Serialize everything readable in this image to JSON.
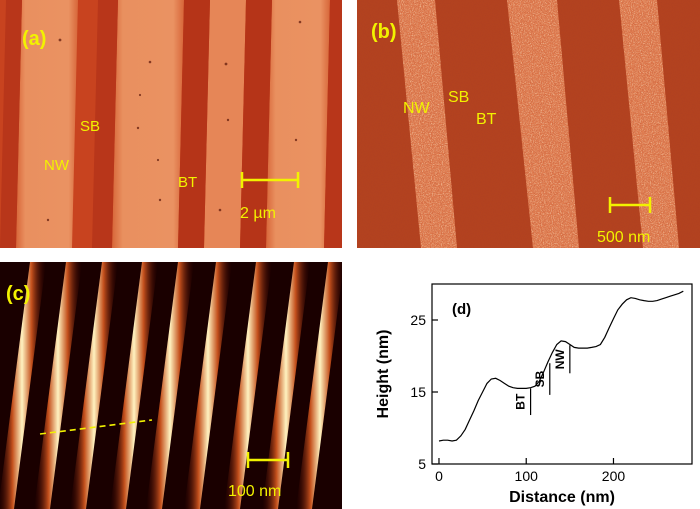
{
  "panels": {
    "a": {
      "tag": "(a)",
      "labels": {
        "sb": "SB",
        "nw": "NW",
        "bt": "BT"
      },
      "scale_bar": "2 µm"
    },
    "b": {
      "tag": "(b)",
      "labels": {
        "nw": "NW",
        "sb": "SB",
        "bt": "BT"
      },
      "scale_bar": "500 nm"
    },
    "c": {
      "tag": "(c)",
      "scale_bar": "100 nm"
    },
    "d": {
      "tag": "(d)",
      "annotations": [
        "BT",
        "SB",
        "NW"
      ]
    }
  },
  "colors": {
    "afm_dark": "#c23a1c",
    "afm_light": "#e8875a",
    "annotation_yellow": "#f2f200",
    "height_profile_dark": "#1a0000",
    "height_profile_bright": "#fff2c0"
  },
  "chart_data": {
    "type": "line",
    "title": "",
    "xlabel": "Distance (nm)",
    "ylabel": "Height (nm)",
    "xlim": [
      -8,
      290
    ],
    "ylim": [
      5,
      30
    ],
    "xticks": [
      0,
      100,
      200
    ],
    "yticks": [
      5,
      15,
      25
    ],
    "grid": false,
    "series": [
      {
        "x": [
          0,
          5,
          10,
          15,
          20,
          25,
          30,
          35,
          40,
          45,
          50,
          55,
          60,
          65,
          70,
          75,
          80,
          85,
          90,
          95,
          100,
          105,
          110,
          115,
          120,
          125,
          130,
          135,
          140,
          145,
          150,
          155,
          160,
          165,
          170,
          175,
          180,
          185,
          190,
          195,
          200,
          205,
          210,
          215,
          220,
          225,
          230,
          235,
          240,
          245,
          250,
          255,
          260,
          265,
          270,
          275,
          280
        ],
        "y": [
          8.2,
          8.3,
          8.3,
          8.2,
          8.3,
          8.9,
          9.8,
          11.1,
          12.4,
          13.8,
          15.0,
          16.2,
          16.8,
          16.9,
          16.6,
          16.2,
          15.8,
          15.6,
          15.5,
          15.5,
          15.5,
          15.6,
          15.8,
          16.5,
          17.8,
          19.2,
          20.5,
          21.6,
          22.1,
          22.0,
          21.6,
          21.2,
          21.1,
          21.1,
          21.1,
          21.2,
          21.3,
          21.6,
          22.6,
          23.9,
          25.2,
          26.4,
          27.2,
          27.8,
          28.1,
          28.0,
          27.8,
          27.7,
          27.6,
          27.6,
          27.7,
          27.9,
          28.1,
          28.3,
          28.5,
          28.7,
          29.0
        ]
      }
    ],
    "annotations": [
      {
        "text": "BT",
        "x": 105,
        "y_from": 15.5,
        "y_to": 11.8
      },
      {
        "text": "SB",
        "x": 127,
        "y_from": 19.0,
        "y_to": 14.6
      },
      {
        "text": "NW",
        "x": 150,
        "y_from": 21.5,
        "y_to": 17.6
      }
    ]
  }
}
